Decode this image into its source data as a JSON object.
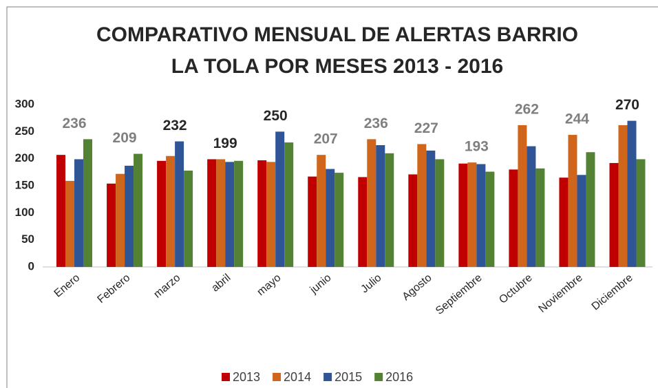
{
  "chart_data": {
    "type": "bar",
    "title": [
      "COMPARATIVO MENSUAL DE ALERTAS BARRIO",
      "LA TOLA  POR MESES 2013 - 2016"
    ],
    "categories": [
      "Enero",
      "Febrero",
      "marzo",
      "abril",
      "mayo",
      "junio",
      "Julio",
      "Agosto",
      "Septiembre",
      "Octubre",
      "Noviembre",
      "Diciembre"
    ],
    "series": [
      {
        "name": "2013",
        "color": "#c00000",
        "values": [
          207,
          154,
          196,
          199,
          197,
          167,
          166,
          171,
          191,
          180,
          165,
          192
        ]
      },
      {
        "name": "2014",
        "color": "#d0661c",
        "values": [
          159,
          172,
          205,
          199,
          194,
          207,
          236,
          227,
          193,
          262,
          244,
          262
        ]
      },
      {
        "name": "2015",
        "color": "#2f5597",
        "values": [
          199,
          187,
          232,
          194,
          250,
          181,
          225,
          215,
          190,
          223,
          170,
          270
        ]
      },
      {
        "name": "2016",
        "color": "#548235",
        "values": [
          236,
          209,
          178,
          196,
          230,
          174,
          210,
          199,
          176,
          182,
          212,
          199
        ]
      }
    ],
    "label_colors": [
      "#7f7f7f",
      "#7f7f7f",
      "#262626",
      "#262626",
      "#262626",
      "#7f7f7f",
      "#7f7f7f",
      "#7f7f7f",
      "#7f7f7f",
      "#7f7f7f",
      "#7f7f7f",
      "#262626"
    ],
    "ylim": [
      0,
      300
    ],
    "yticks": [
      0,
      50,
      100,
      150,
      200,
      250,
      300
    ],
    "grid": false,
    "legend": "bottom"
  }
}
